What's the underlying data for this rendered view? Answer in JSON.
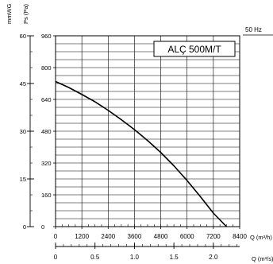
{
  "chart_data": {
    "type": "line",
    "title": "ALÇ 500M/T",
    "frequency_label": "50 Hz",
    "y_left_label": "mmWG",
    "y_pa_label": "Ps (Pa)",
    "x_label_m3h": "Q (m³/h)",
    "x_label_m3s": "Q (m³/s)",
    "x_ticks_m3h": [
      "0",
      "1200",
      "2400",
      "3600",
      "4800",
      "6000",
      "7200",
      "8400"
    ],
    "x_ticks_m3s": [
      "0",
      "0.5",
      "1.0",
      "1.5",
      "2.0"
    ],
    "y_ticks_pa": [
      "0",
      "160",
      "320",
      "480",
      "640",
      "800",
      "960"
    ],
    "y_ticks_mmwg": [
      "0",
      "15",
      "30",
      "45",
      "60"
    ],
    "xlim": [
      0,
      8400
    ],
    "ylim": [
      0,
      960
    ],
    "grid": true,
    "series": [
      {
        "x": [
          0,
          600,
          1200,
          1800,
          2400,
          3000,
          3600,
          4200,
          4800,
          5400,
          6000,
          6600,
          7200,
          7800
        ],
        "y": [
          730,
          700,
          665,
          628,
          585,
          538,
          488,
          433,
          373,
          306,
          232,
          152,
          68,
          0
        ]
      }
    ]
  }
}
